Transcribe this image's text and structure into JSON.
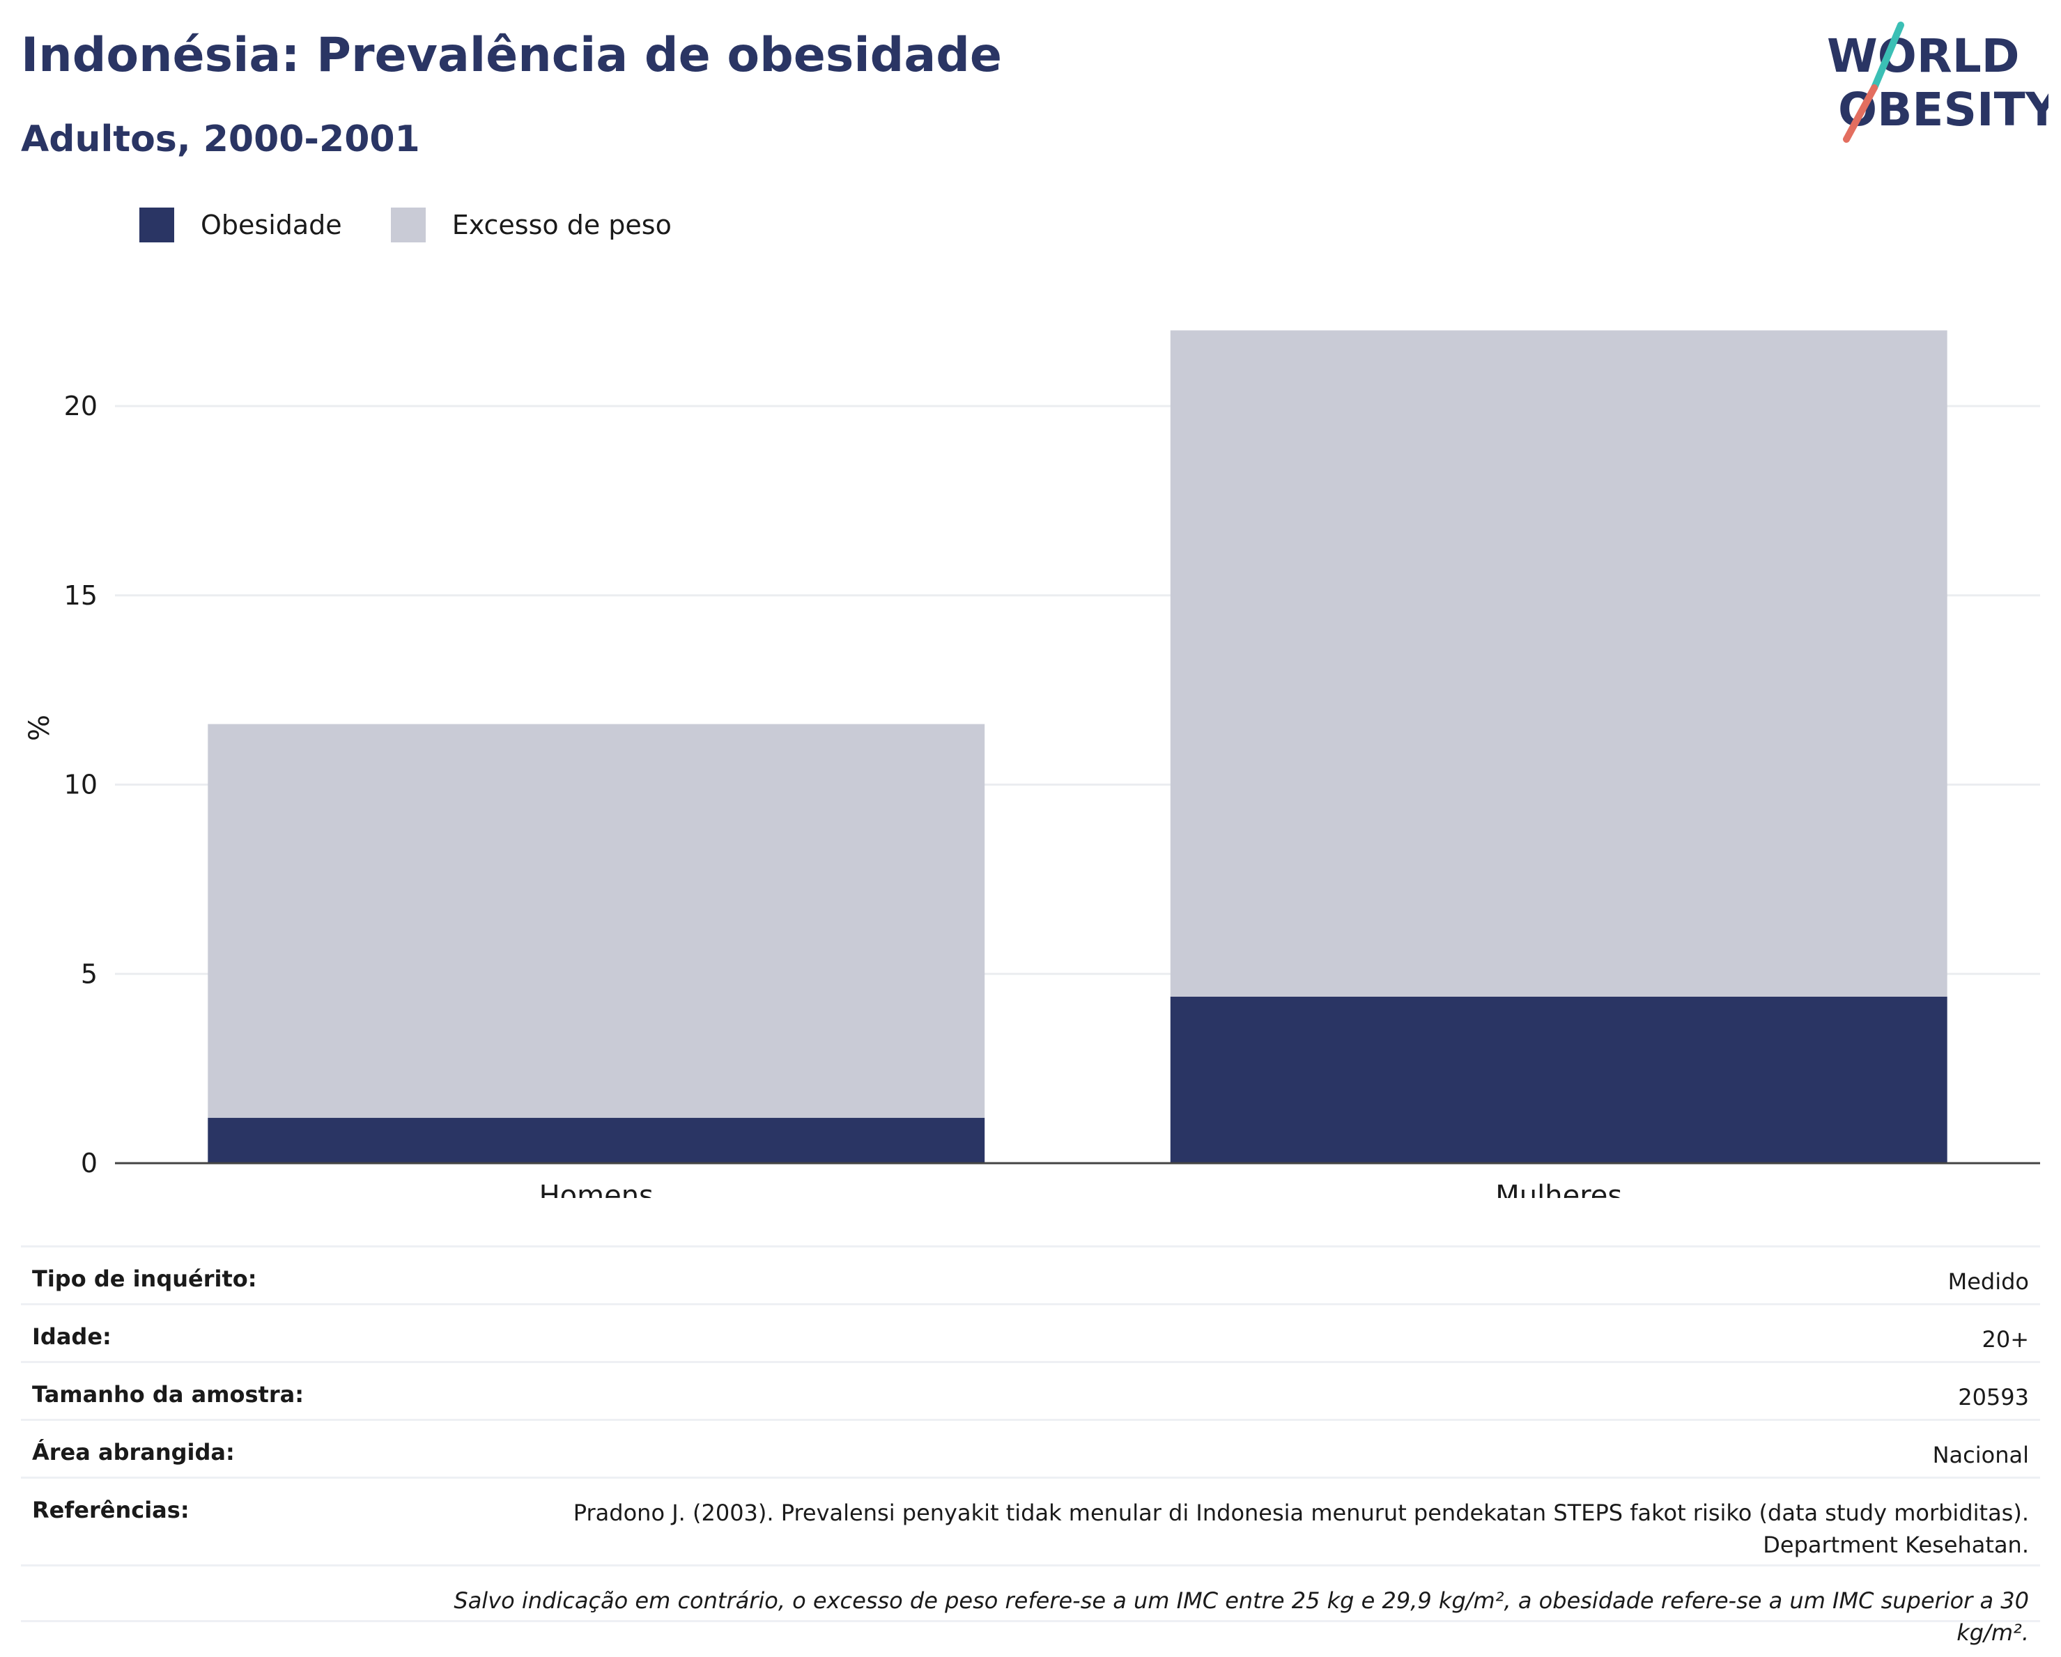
{
  "header": {
    "title": "Indonésia: Prevalência de obesidade",
    "subtitle": "Adultos, 2000-2001"
  },
  "logo": {
    "line1": "WORLD",
    "line2": "OBESITY"
  },
  "colors": {
    "obesity": "#2a3564",
    "overweight": "#c9cbd6",
    "title": "#2a3564"
  },
  "legend": {
    "items": [
      "Obesidade",
      "Excesso de peso"
    ]
  },
  "chart_data": {
    "type": "bar",
    "stacked": true,
    "categories": [
      "Homens",
      "Mulheres"
    ],
    "series": [
      {
        "name": "Obesidade",
        "values": [
          1.2,
          4.4
        ]
      },
      {
        "name": "Excesso de peso",
        "values": [
          10.4,
          17.6
        ]
      }
    ],
    "ylabel": "%",
    "ylim": [
      0,
      23
    ],
    "yticks": [
      0,
      5,
      10,
      15,
      20
    ],
    "grid": true,
    "legend_position": "top-left"
  },
  "info": {
    "survey_type": {
      "label": "Tipo de inquérito:",
      "value": "Medido"
    },
    "age": {
      "label": "Idade:",
      "value": "20+"
    },
    "sample_size": {
      "label": "Tamanho da amostra:",
      "value": "20593"
    },
    "area": {
      "label": "Área abrangida:",
      "value": "Nacional"
    },
    "references": {
      "label": "Referências:",
      "line1": "Pradono J. (2003). Prevalensi penyakit tidak menular di Indonesia menurut pendekatan STEPS fakot risiko (data study morbiditas).",
      "line2": "Department Kesehatan."
    },
    "footnote": "Salvo indicação em contrário, o excesso de peso refere-se a um IMC entre 25 kg e 29,9 kg/m², a obesidade refere-se a um IMC superior a 30 kg/m²."
  }
}
